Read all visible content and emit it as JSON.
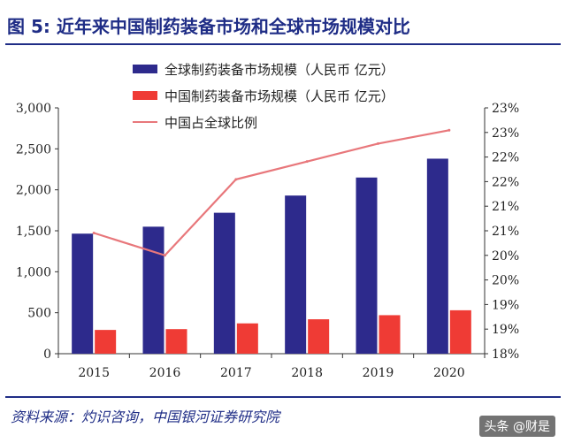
{
  "header": {
    "title": "图 5:  近年来中国制药装备市场和全球市场规模对比"
  },
  "footer": {
    "source": "资料来源：灼识咨询，中国银河证券研究院",
    "watermark": "头条 @财是"
  },
  "colors": {
    "global": "#2d2a8c",
    "china": "#ef3b35",
    "ratio": "#e8777b",
    "title": "#1f2d86"
  },
  "chart_data": {
    "type": "bar",
    "categories": [
      "2015",
      "2016",
      "2017",
      "2018",
      "2019",
      "2020"
    ],
    "series": [
      {
        "name": "全球制药装备市场规模（人民币 亿元）",
        "type": "bar",
        "axis": "left",
        "values": [
          1465,
          1550,
          1720,
          1930,
          2150,
          2380
        ]
      },
      {
        "name": "中国制药装备市场规模（人民币 亿元）",
        "type": "bar",
        "axis": "left",
        "values": [
          290,
          300,
          370,
          420,
          470,
          530
        ]
      },
      {
        "name": "中国占全球比例",
        "type": "line",
        "axis": "right",
        "values": [
          20.7,
          20.2,
          21.9,
          22.3,
          22.7,
          23.0
        ]
      }
    ],
    "left_axis": {
      "ylim": [
        0,
        3000
      ],
      "ticks": [
        "0",
        "500",
        "1,000",
        "1,500",
        "2,000",
        "2,500",
        "3,000"
      ]
    },
    "right_axis": {
      "ylim": [
        18,
        23.5
      ],
      "ticks": [
        "18%",
        "19%",
        "19%",
        "20%",
        "20%",
        "21%",
        "21%",
        "22%",
        "22%",
        "23%",
        "23%"
      ]
    },
    "legend_position": "top"
  }
}
